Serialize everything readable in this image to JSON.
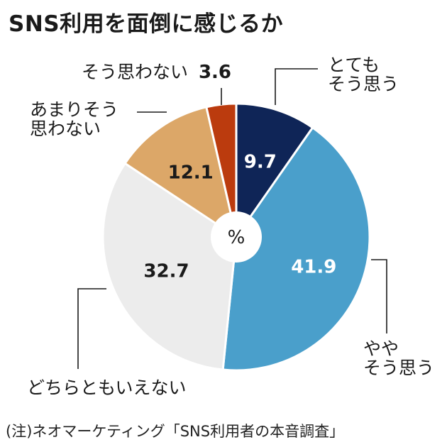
{
  "chart_data": {
    "type": "pie",
    "title": "SNS利用を面倒に感じるか",
    "unit": "%",
    "slices": [
      {
        "label": [
          "とても",
          "そう思う"
        ],
        "value": 9.7,
        "color": "#0f2557",
        "value_color": "#ffffff"
      },
      {
        "label": [
          "やや",
          "そう思う"
        ],
        "value": 41.9,
        "color": "#4a9fcb",
        "value_color": "#ffffff"
      },
      {
        "label": [
          "どちらともいえない"
        ],
        "value": 32.7,
        "color": "#ececec",
        "value_color": "#1a1a1a"
      },
      {
        "label": [
          "あまりそう",
          "思わない"
        ],
        "value": 12.1,
        "color": "#dca768",
        "value_color": "#1a1a1a"
      },
      {
        "label": [
          "そう思わない"
        ],
        "value": 3.6,
        "color": "#bb3b0e",
        "value_color": "#1a1a1a"
      }
    ]
  },
  "source": "(注)ネオマーケティング「SNS利用者の本音調査」"
}
